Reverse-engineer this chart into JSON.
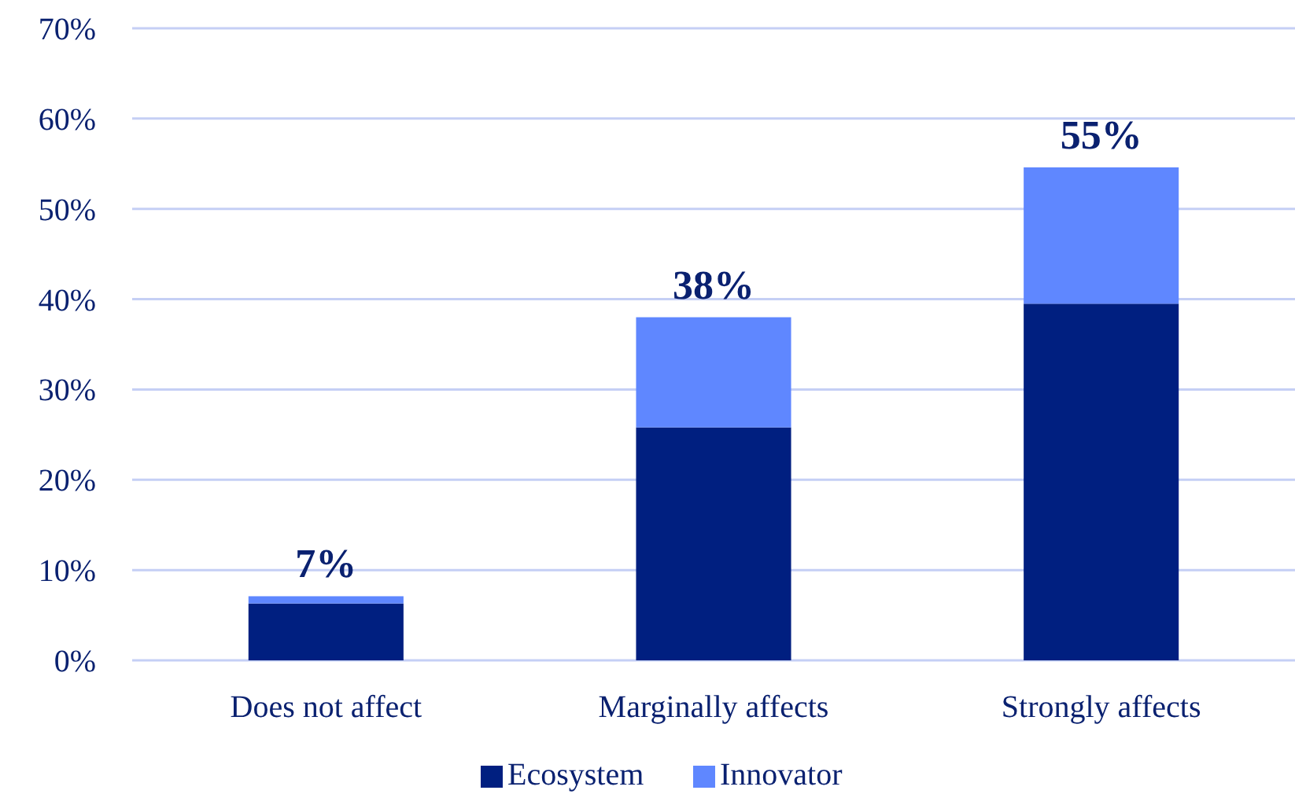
{
  "chart_data": {
    "type": "bar",
    "stacked": true,
    "categories": [
      "Does not affect",
      "Marginally affects",
      "Strongly affects"
    ],
    "series": [
      {
        "name": "Ecosystem",
        "color": "#001f80",
        "values": [
          6.3,
          25.8,
          39.5
        ]
      },
      {
        "name": "Innovator",
        "color": "#5f87ff",
        "values": [
          0.8,
          12.2,
          15.1
        ]
      }
    ],
    "totals": [
      "7%",
      "38%",
      "55%"
    ],
    "ylim": [
      0,
      70
    ],
    "yticks": [
      {
        "value": 0,
        "label": "0%"
      },
      {
        "value": 10,
        "label": "10%"
      },
      {
        "value": 20,
        "label": "20%"
      },
      {
        "value": 30,
        "label": "30%"
      },
      {
        "value": 40,
        "label": "40%"
      },
      {
        "value": 50,
        "label": "50%"
      },
      {
        "value": 60,
        "label": "60%"
      },
      {
        "value": 70,
        "label": "70%"
      }
    ],
    "grid": "y",
    "legend": "bottom"
  }
}
